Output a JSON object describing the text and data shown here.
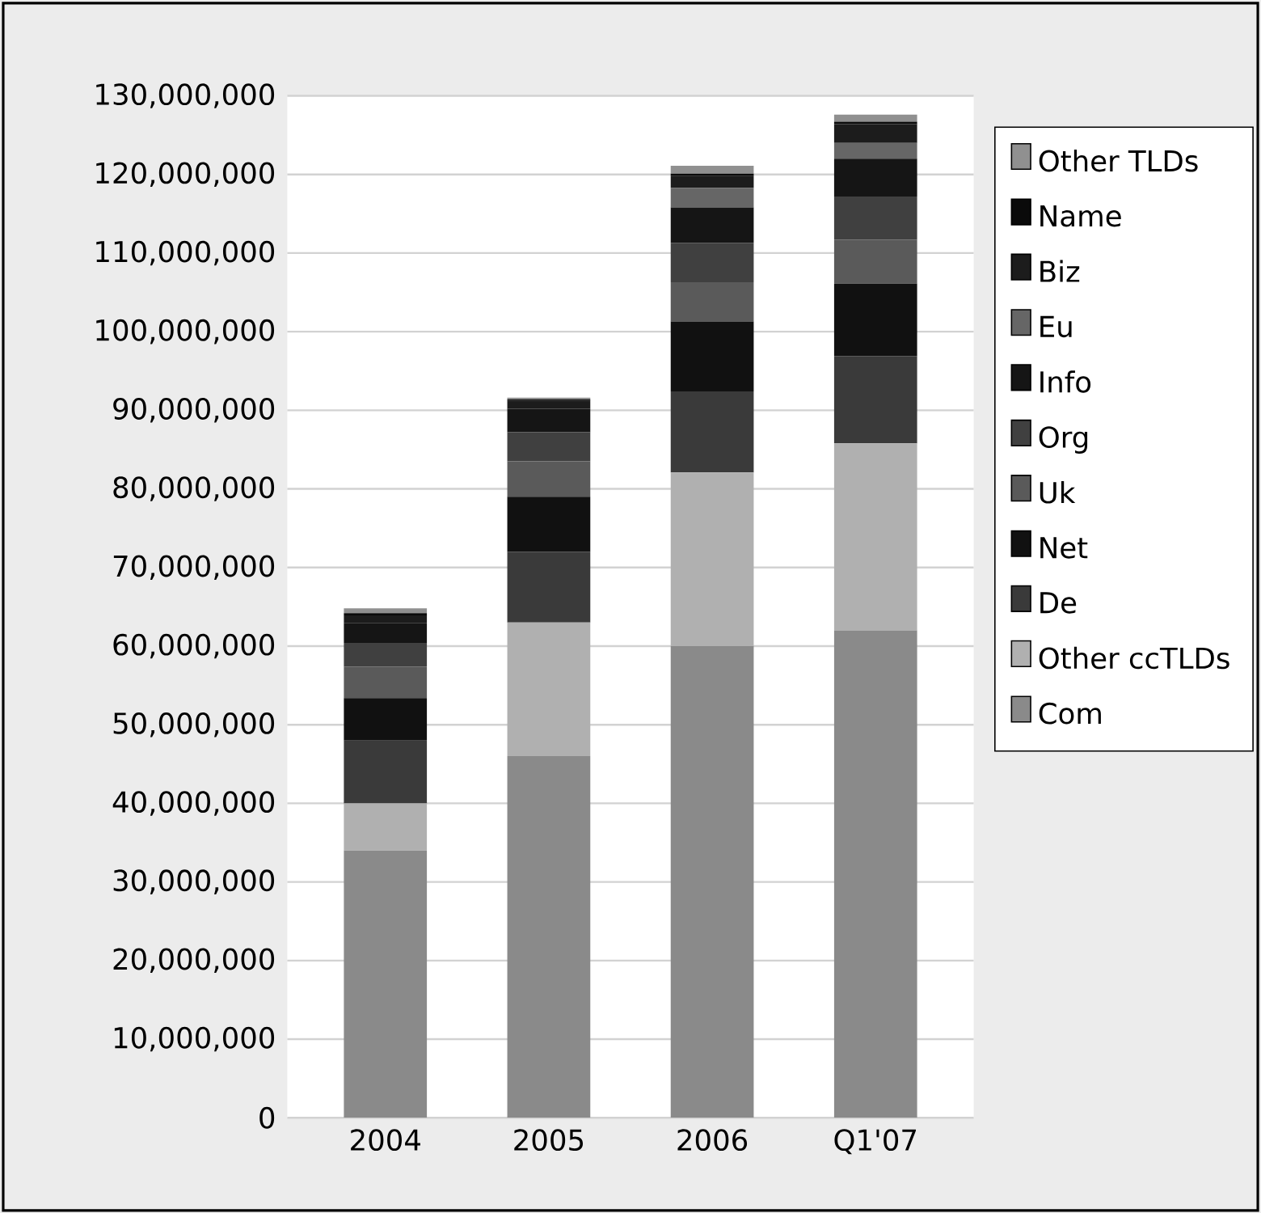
{
  "chart_data": {
    "type": "bar",
    "stacked": true,
    "categories": [
      "2004",
      "2005",
      "2006",
      "Q1'07"
    ],
    "series": [
      {
        "name": "Com",
        "color": "#8a8a8a",
        "values": [
          34000000,
          46000000,
          60000000,
          62000000
        ]
      },
      {
        "name": "Other ccTLDs",
        "color": "#b0b0b0",
        "values": [
          6000000,
          17000000,
          22100000,
          23800000
        ]
      },
      {
        "name": "De",
        "color": "#3a3a3a",
        "values": [
          8000000,
          9000000,
          10300000,
          11100000
        ]
      },
      {
        "name": "Net",
        "color": "#111111",
        "values": [
          5400000,
          7000000,
          8900000,
          9200000
        ]
      },
      {
        "name": "Uk",
        "color": "#5a5a5a",
        "values": [
          4000000,
          4500000,
          5000000,
          5600000
        ]
      },
      {
        "name": "Org",
        "color": "#404040",
        "values": [
          3000000,
          3700000,
          5000000,
          5500000
        ]
      },
      {
        "name": "Info",
        "color": "#151515",
        "values": [
          2500000,
          3000000,
          4500000,
          4800000
        ]
      },
      {
        "name": "Eu",
        "color": "#666666",
        "values": [
          0,
          0,
          2500000,
          2000000
        ]
      },
      {
        "name": "Biz",
        "color": "#1c1c1c",
        "values": [
          1000000,
          1000000,
          1500000,
          2400000
        ]
      },
      {
        "name": "Name",
        "color": "#0a0a0a",
        "values": [
          300000,
          200000,
          300000,
          300000
        ]
      },
      {
        "name": "Other TLDs",
        "color": "#909090",
        "values": [
          600000,
          200000,
          1000000,
          900000
        ]
      }
    ],
    "ylim": [
      0,
      130000000
    ],
    "yticks": [
      {
        "value": 0,
        "label": "0"
      },
      {
        "value": 10000000,
        "label": "10,000,000"
      },
      {
        "value": 20000000,
        "label": "20,000,000"
      },
      {
        "value": 30000000,
        "label": "30,000,000"
      },
      {
        "value": 40000000,
        "label": "40,000,000"
      },
      {
        "value": 50000000,
        "label": "50,000,000"
      },
      {
        "value": 60000000,
        "label": "60,000,000"
      },
      {
        "value": 70000000,
        "label": "70,000,000"
      },
      {
        "value": 80000000,
        "label": "80,000,000"
      },
      {
        "value": 90000000,
        "label": "90,000,000"
      },
      {
        "value": 100000000,
        "label": "100,000,000"
      },
      {
        "value": 110000000,
        "label": "110,000,000"
      },
      {
        "value": 120000000,
        "label": "120,000,000"
      },
      {
        "value": 130000000,
        "label": "130,000,000"
      }
    ],
    "grid": "y",
    "legend": "right"
  }
}
